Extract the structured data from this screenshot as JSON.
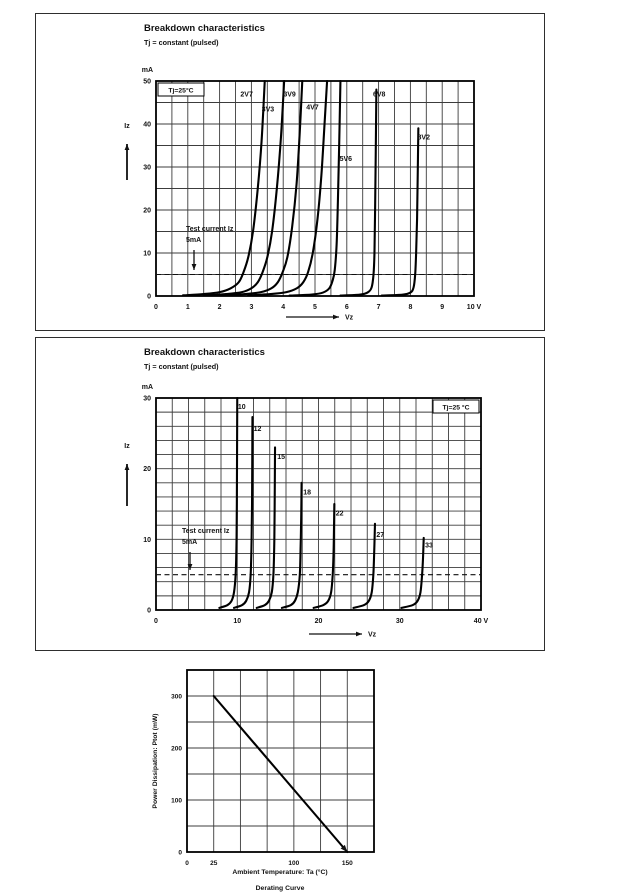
{
  "page": {
    "bg": "#ffffff",
    "ink": "#111111",
    "grid_color": "#3c3c3c"
  },
  "chart_data": [
    {
      "type": "line",
      "title": "Breakdown characteristics",
      "subtitle": "Tj = constant (pulsed)",
      "corner_label": "Tj=25°C",
      "corner_position": "top-left",
      "ylabel": "Iz",
      "xlabel": "Vz",
      "y_unit": "mA",
      "x_unit": "V",
      "xlim": [
        0,
        10
      ],
      "ylim": [
        0,
        50
      ],
      "x_ticks": [
        0,
        1,
        2,
        3,
        4,
        5,
        6,
        7,
        8,
        9,
        10
      ],
      "y_ticks": [
        0,
        10,
        20,
        30,
        40,
        50
      ],
      "x_minor": 0.5,
      "y_minor": 5,
      "grid": true,
      "legend_position": "none",
      "dashed_y": 5,
      "annotation": [
        "Test current Iz",
        "5mA"
      ],
      "series": [
        {
          "name": "2V7",
          "label_at": [
            2.85,
            47
          ],
          "points": [
            [
              0.85,
              0.15
            ],
            [
              1.5,
              0.45
            ],
            [
              2.0,
              0.9
            ],
            [
              2.35,
              1.8
            ],
            [
              2.6,
              3.2
            ],
            [
              2.75,
              5.5
            ],
            [
              2.9,
              9
            ],
            [
              3.05,
              15
            ],
            [
              3.2,
              25
            ],
            [
              3.32,
              36
            ],
            [
              3.42,
              50
            ]
          ]
        },
        {
          "name": "3V3",
          "label_at": [
            3.52,
            43.5
          ],
          "points": [
            [
              1.5,
              0.15
            ],
            [
              2.2,
              0.45
            ],
            [
              2.7,
              0.9
            ],
            [
              3.0,
              1.8
            ],
            [
              3.2,
              3.2
            ],
            [
              3.35,
              5.5
            ],
            [
              3.5,
              9
            ],
            [
              3.65,
              15
            ],
            [
              3.8,
              25
            ],
            [
              3.93,
              37
            ],
            [
              4.03,
              50
            ]
          ]
        },
        {
          "name": "3V9",
          "label_at": [
            4.2,
            47
          ],
          "points": [
            [
              2.1,
              0.15
            ],
            [
              2.8,
              0.45
            ],
            [
              3.3,
              0.9
            ],
            [
              3.63,
              1.8
            ],
            [
              3.83,
              3.2
            ],
            [
              3.98,
              5.5
            ],
            [
              4.13,
              9
            ],
            [
              4.28,
              16
            ],
            [
              4.42,
              26
            ],
            [
              4.52,
              38
            ],
            [
              4.6,
              50
            ]
          ]
        },
        {
          "name": "4V7",
          "label_at": [
            4.92,
            44
          ],
          "points": [
            [
              2.9,
              0.15
            ],
            [
              3.6,
              0.45
            ],
            [
              4.1,
              0.9
            ],
            [
              4.43,
              1.8
            ],
            [
              4.63,
              3.2
            ],
            [
              4.78,
              5.5
            ],
            [
              4.93,
              10
            ],
            [
              5.08,
              18
            ],
            [
              5.2,
              28
            ],
            [
              5.3,
              40
            ],
            [
              5.38,
              50
            ]
          ]
        },
        {
          "name": "5V6",
          "label_at": [
            5.97,
            32
          ],
          "points": [
            [
              4.2,
              0.1
            ],
            [
              4.9,
              0.35
            ],
            [
              5.25,
              0.8
            ],
            [
              5.45,
              1.8
            ],
            [
              5.55,
              3.5
            ],
            [
              5.62,
              6
            ],
            [
              5.68,
              12
            ],
            [
              5.72,
              22
            ],
            [
              5.76,
              35
            ],
            [
              5.8,
              50
            ]
          ]
        },
        {
          "name": "6V8",
          "label_at": [
            7.02,
            47
          ],
          "points": [
            [
              5.8,
              0.1
            ],
            [
              6.4,
              0.3
            ],
            [
              6.65,
              0.8
            ],
            [
              6.78,
              2.0
            ],
            [
              6.84,
              5
            ],
            [
              6.87,
              10
            ],
            [
              6.89,
              20
            ],
            [
              6.91,
              33
            ],
            [
              6.93,
              48
            ]
          ]
        },
        {
          "name": "8V2",
          "label_at": [
            8.42,
            37
          ],
          "points": [
            [
              7.1,
              0.1
            ],
            [
              7.75,
              0.3
            ],
            [
              8.0,
              0.8
            ],
            [
              8.1,
              2.0
            ],
            [
              8.15,
              5
            ],
            [
              8.18,
              10
            ],
            [
              8.21,
              18
            ],
            [
              8.23,
              28
            ],
            [
              8.25,
              39
            ]
          ]
        }
      ]
    },
    {
      "type": "line",
      "title": "Breakdown characteristics",
      "subtitle": "Tj = constant (pulsed)",
      "corner_label": "Tj=25 °C",
      "corner_position": "top-right",
      "ylabel": "Iz",
      "xlabel": "Vz",
      "y_unit": "mA",
      "x_unit": "V",
      "xlim": [
        0,
        40
      ],
      "ylim": [
        0,
        30
      ],
      "x_ticks": [
        0,
        10,
        20,
        30,
        40
      ],
      "y_ticks": [
        0,
        10,
        20,
        30
      ],
      "x_minor": 2,
      "y_minor": 2,
      "grid": true,
      "legend_position": "none",
      "dashed_y": 5,
      "annotation": [
        "Test current Iz",
        "5mA"
      ],
      "series": [
        {
          "name": "10",
          "label_at": [
            10.55,
            28.8
          ],
          "points": [
            [
              7.8,
              0.3
            ],
            [
              8.8,
              0.7
            ],
            [
              9.3,
              1.3
            ],
            [
              9.6,
              2.5
            ],
            [
              9.8,
              5
            ],
            [
              9.9,
              9
            ],
            [
              9.95,
              15
            ],
            [
              10.0,
              30
            ]
          ]
        },
        {
          "name": "12",
          "label_at": [
            12.5,
            25.7
          ],
          "points": [
            [
              9.6,
              0.3
            ],
            [
              10.6,
              0.7
            ],
            [
              11.1,
              1.3
            ],
            [
              11.45,
              2.5
            ],
            [
              11.65,
              5
            ],
            [
              11.75,
              9
            ],
            [
              11.82,
              15
            ],
            [
              11.87,
              27.3
            ]
          ]
        },
        {
          "name": "15",
          "label_at": [
            15.4,
            21.7
          ],
          "points": [
            [
              12.4,
              0.3
            ],
            [
              13.4,
              0.7
            ],
            [
              13.9,
              1.3
            ],
            [
              14.25,
              2.5
            ],
            [
              14.45,
              5
            ],
            [
              14.55,
              9
            ],
            [
              14.6,
              14
            ],
            [
              14.65,
              23
            ]
          ]
        },
        {
          "name": "18",
          "label_at": [
            18.6,
            16.7
          ],
          "points": [
            [
              15.5,
              0.3
            ],
            [
              16.6,
              0.7
            ],
            [
              17.1,
              1.3
            ],
            [
              17.45,
              2.5
            ],
            [
              17.7,
              5
            ],
            [
              17.8,
              9
            ],
            [
              17.87,
              13
            ],
            [
              17.92,
              18
            ]
          ]
        },
        {
          "name": "22",
          "label_at": [
            22.6,
            13.7
          ],
          "points": [
            [
              19.4,
              0.3
            ],
            [
              20.6,
              0.7
            ],
            [
              21.2,
              1.3
            ],
            [
              21.55,
              2.5
            ],
            [
              21.75,
              5
            ],
            [
              21.85,
              8
            ],
            [
              21.9,
              11
            ],
            [
              21.95,
              15
            ]
          ]
        },
        {
          "name": "27",
          "label_at": [
            27.6,
            10.7
          ],
          "points": [
            [
              24.3,
              0.3
            ],
            [
              25.6,
              0.7
            ],
            [
              26.2,
              1.3
            ],
            [
              26.55,
              2.5
            ],
            [
              26.75,
              5
            ],
            [
              26.85,
              8
            ],
            [
              26.9,
              10
            ],
            [
              26.95,
              12.2
            ]
          ]
        },
        {
          "name": "33",
          "label_at": [
            33.6,
            9.2
          ],
          "points": [
            [
              30.2,
              0.3
            ],
            [
              31.6,
              0.7
            ],
            [
              32.2,
              1.3
            ],
            [
              32.55,
              2.5
            ],
            [
              32.75,
              5
            ],
            [
              32.85,
              7
            ],
            [
              32.9,
              8.5
            ],
            [
              32.95,
              10.2
            ]
          ]
        }
      ]
    },
    {
      "type": "line",
      "title": "Derating Curve",
      "caption": "Derating Curve",
      "xlabel": "Ambient Temperature: Ta (°C)",
      "ylabel": "Power Dissipation: Ptot (mW)",
      "xlim": [
        0,
        175
      ],
      "ylim": [
        0,
        350
      ],
      "x_ticks": [
        {
          "v": 0,
          "label": "0"
        },
        {
          "v": 25,
          "label": "25"
        },
        {
          "v": 100,
          "label": "100"
        },
        {
          "v": 150,
          "label": "150"
        }
      ],
      "y_ticks": [
        0,
        100,
        200,
        300
      ],
      "x_minor": 25,
      "y_minor": 50,
      "grid": true,
      "legend_position": "none",
      "series": [
        {
          "name": "derating-line",
          "arrow_end": true,
          "points": [
            [
              25,
              300
            ],
            [
              150,
              0
            ]
          ]
        }
      ]
    }
  ]
}
